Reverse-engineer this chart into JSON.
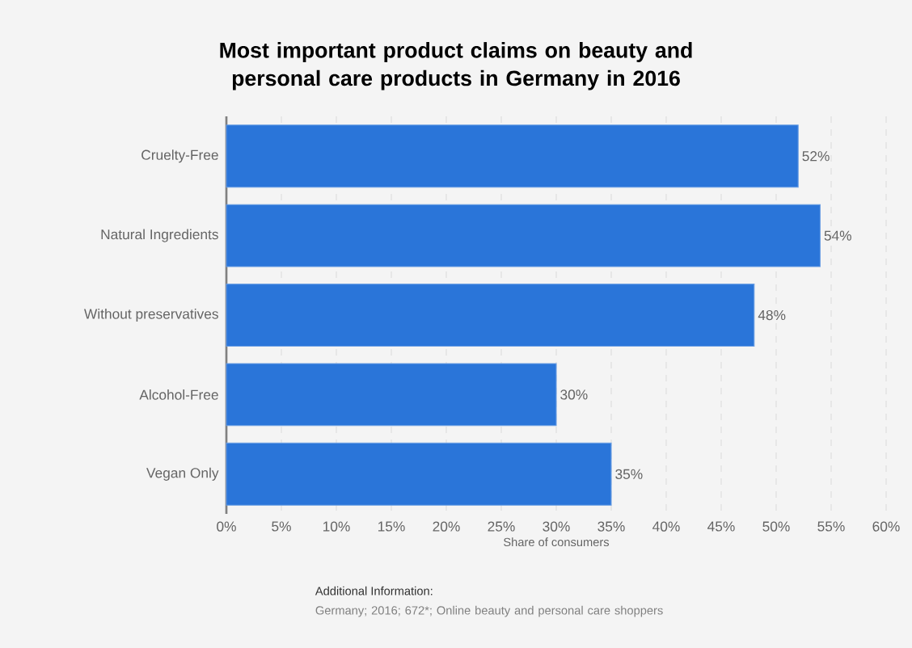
{
  "chart_data": {
    "type": "bar",
    "orientation": "horizontal",
    "title": "Most important product claims on beauty and personal care products in Germany in 2016",
    "xlabel": "Share of consumers",
    "categories": [
      "Cruelty-Free",
      "Natural Ingredients",
      "Without preservatives",
      "Alcohol-Free",
      "Vegan Only"
    ],
    "values": [
      52,
      54,
      48,
      30,
      35
    ],
    "value_labels": [
      "52%",
      "54%",
      "48%",
      "30%",
      "35%"
    ],
    "color": "#2a75d9",
    "xlim": [
      0,
      60
    ],
    "xticks": [
      {
        "value": 0,
        "label": "0%"
      },
      {
        "value": 5,
        "label": "5%"
      },
      {
        "value": 10,
        "label": "10%"
      },
      {
        "value": 15,
        "label": "15%"
      },
      {
        "value": 20,
        "label": "20%"
      },
      {
        "value": 25,
        "label": "25%"
      },
      {
        "value": 30,
        "label": "30%"
      },
      {
        "value": 35,
        "label": "35%"
      },
      {
        "value": 40,
        "label": "40%"
      },
      {
        "value": 45,
        "label": "45%"
      },
      {
        "value": 50,
        "label": "50%"
      },
      {
        "value": 55,
        "label": "55%"
      },
      {
        "value": 60,
        "label": "60%"
      }
    ],
    "grid": "x",
    "annotations": [
      "Additional Information:",
      "Germany; 2016; 672*; Online beauty and personal care shoppers"
    ]
  }
}
